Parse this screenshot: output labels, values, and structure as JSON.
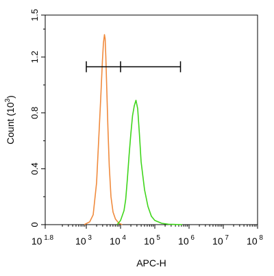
{
  "chart_data": {
    "type": "line",
    "title": "",
    "xlabel": "APC-H",
    "ylabel": "Count (10^3)",
    "ylabel_parts": {
      "text": "Count (10",
      "exp": "3",
      "close": ")"
    },
    "x_scale": "log10",
    "xlim_log10": [
      1.8,
      8
    ],
    "ylim": [
      0,
      1.5
    ],
    "grid": false,
    "legend": "none",
    "x_tick_labels": [
      {
        "base": "10",
        "exp": "1.8",
        "log": 1.8
      },
      {
        "base": "10",
        "exp": "3",
        "log": 3
      },
      {
        "base": "10",
        "exp": "4",
        "log": 4
      },
      {
        "base": "10",
        "exp": "5",
        "log": 5
      },
      {
        "base": "10",
        "exp": "6",
        "log": 6
      },
      {
        "base": "10",
        "exp": "7",
        "log": 7
      },
      {
        "base": "10",
        "exp": "8",
        "log": 8
      }
    ],
    "y_ticks": [
      0,
      0.4,
      0.8,
      1.2,
      1.5
    ],
    "y_tick_labels": [
      "0",
      "0.4",
      "0.8",
      "1.2",
      "1.5"
    ],
    "series": [
      {
        "color": "#f08a3c",
        "x_log10": [
          2.94,
          3.1,
          3.2,
          3.3,
          3.36,
          3.42,
          3.47,
          3.5,
          3.53,
          3.55,
          3.57,
          3.6,
          3.63,
          3.67,
          3.72,
          3.78,
          3.85,
          3.95,
          4.05
        ],
        "y": [
          0.0,
          0.02,
          0.07,
          0.3,
          0.6,
          0.9,
          1.17,
          1.3,
          1.36,
          1.33,
          1.2,
          0.95,
          0.7,
          0.42,
          0.2,
          0.09,
          0.04,
          0.01,
          0.0
        ]
      },
      {
        "color": "#3ed51a",
        "x_log10": [
          3.9,
          4.0,
          4.1,
          4.15,
          4.2,
          4.25,
          4.3,
          4.35,
          4.4,
          4.45,
          4.5,
          4.55,
          4.6,
          4.7,
          4.8,
          4.9,
          5.0,
          5.2,
          5.4,
          5.8
        ],
        "y": [
          0.0,
          0.03,
          0.1,
          0.18,
          0.33,
          0.5,
          0.65,
          0.78,
          0.85,
          0.89,
          0.83,
          0.65,
          0.45,
          0.25,
          0.13,
          0.06,
          0.03,
          0.01,
          0.003,
          0.0
        ]
      }
    ],
    "gate": {
      "x_log10": [
        3.0,
        4.0,
        5.75
      ],
      "y": 1.13
    }
  }
}
